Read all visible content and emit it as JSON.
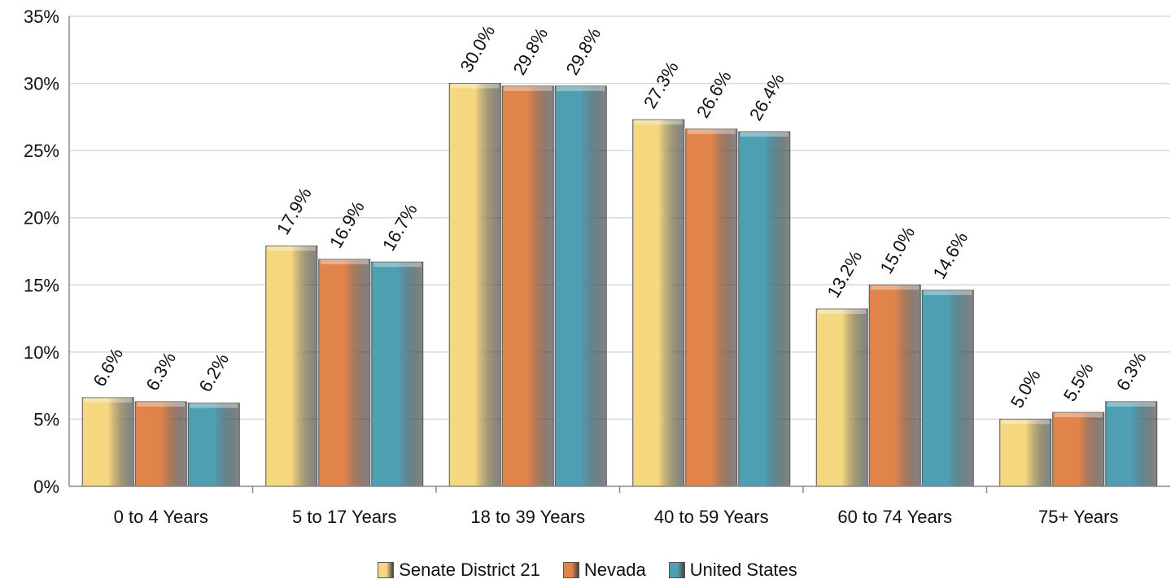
{
  "chart_data": {
    "type": "bar",
    "categories": [
      "0 to 4 Years",
      "5 to 17 Years",
      "18 to 39 Years",
      "40 to 59 Years",
      "60 to 74 Years",
      "75+ Years"
    ],
    "series": [
      {
        "name": "Senate District 21",
        "color": "#f5d77f",
        "values": [
          6.6,
          17.9,
          30.0,
          27.3,
          13.2,
          5.0
        ],
        "labels": [
          "6.6%",
          "17.9%",
          "30.0%",
          "27.3%",
          "13.2%",
          "5.0%"
        ]
      },
      {
        "name": "Nevada",
        "color": "#e0844c",
        "values": [
          6.3,
          16.9,
          29.8,
          26.6,
          15.0,
          5.5
        ],
        "labels": [
          "6.3%",
          "16.9%",
          "29.8%",
          "26.6%",
          "15.0%",
          "5.5%"
        ]
      },
      {
        "name": "United States",
        "color": "#4f9fb3",
        "values": [
          6.2,
          16.7,
          29.8,
          26.4,
          14.6,
          6.3
        ],
        "labels": [
          "6.2%",
          "16.7%",
          "29.8%",
          "26.4%",
          "14.6%",
          "6.3%"
        ]
      }
    ],
    "y_ticks": [
      "0%",
      "5%",
      "10%",
      "15%",
      "20%",
      "25%",
      "30%",
      "35%"
    ],
    "ylim": [
      0,
      35
    ],
    "grid": true,
    "legend_position": "bottom"
  }
}
